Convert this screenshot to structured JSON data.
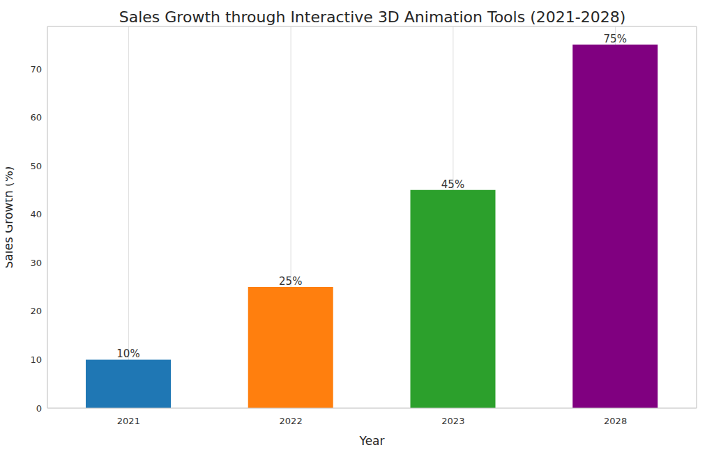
{
  "chart_data": {
    "type": "bar",
    "title": "Sales Growth through Interactive 3D Animation Tools (2021-2028)",
    "x_label": "Year",
    "y_label": "Sales Growth (%)",
    "categories": [
      "2021",
      "2022",
      "2023",
      "2028"
    ],
    "values": [
      10,
      25,
      45,
      75
    ],
    "value_labels": [
      "10%",
      "25%",
      "45%",
      "75%"
    ],
    "colors": [
      "#1f77b4",
      "#ff7f0e",
      "#2ca02c",
      "#800080"
    ],
    "ylim": [
      0,
      78.75
    ],
    "yticks": [
      0,
      10,
      20,
      30,
      40,
      50,
      60,
      70
    ],
    "grid": true,
    "data_labels": true
  }
}
